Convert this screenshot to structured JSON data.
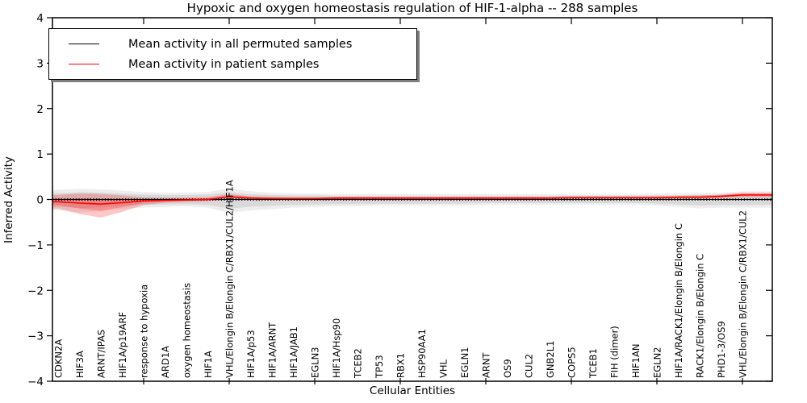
{
  "chart_data": {
    "type": "line",
    "title": "Hypoxic and oxygen homeostasis regulation of HIF-1-alpha -- 288 samples",
    "xlabel": "Cellular Entities",
    "ylabel": "Inferred Activity",
    "ylim": [
      -4,
      4
    ],
    "yticks": [
      4,
      3,
      2,
      1,
      0,
      -1,
      -2,
      -3,
      -4
    ],
    "grid": false,
    "legend_position": "upper left",
    "categories": [
      "CDKN2A",
      "HIF3A",
      "ARNT/IPAS",
      "HIF1A/p19ARF",
      "response to hypoxia",
      "ARD1A",
      "oxygen homeostasis",
      "HIF1A",
      "VHL/Elongin B/Elongin C/RBX1/CUL2/HIF1A",
      "HIF1A/p53",
      "HIF1A/ARNT",
      "HIF1A/JAB1",
      "EGLN3",
      "HIF1A/Hsp90",
      "TCEB2",
      "TP53",
      "RBX1",
      "HSP90AA1",
      "VHL",
      "EGLN1",
      "ARNT",
      "OS9",
      "CUL2",
      "GNB2L1",
      "COPS5",
      "TCEB1",
      "FIH (dimer)",
      "HIF1AN",
      "EGLN2",
      "HIF1A/RACK1/Elongin B/Elongin C",
      "RACK1/Elongin B/Elongin C",
      "PHD1-3/OS9",
      "VHL/Elongin B/Elongin C/RBX1/CUL2"
    ],
    "series": [
      {
        "name": "Mean activity in all permuted samples",
        "color": "#000000",
        "style": "solid-with-tick-markers",
        "values": [
          0,
          0,
          0,
          0,
          0,
          0,
          0,
          0,
          0,
          0,
          0,
          0,
          0,
          0,
          0,
          0,
          0,
          0,
          0,
          0,
          0,
          0,
          0,
          0,
          0,
          0,
          0,
          0,
          0,
          0,
          0,
          0,
          0
        ]
      },
      {
        "name": "Mean activity in patient samples",
        "color": "#ff0000",
        "style": "solid",
        "values": [
          -0.05,
          -0.08,
          -0.1,
          -0.07,
          -0.03,
          -0.02,
          -0.01,
          0.0,
          0.06,
          0.03,
          0.02,
          0.02,
          0.02,
          0.03,
          0.03,
          0.03,
          0.03,
          0.03,
          0.03,
          0.03,
          0.03,
          0.03,
          0.03,
          0.03,
          0.04,
          0.04,
          0.04,
          0.04,
          0.04,
          0.05,
          0.05,
          0.07,
          0.1
        ]
      }
    ],
    "bands": [
      {
        "name": "permuted samples activity spread",
        "color": "#c8c8c8",
        "opacity": 0.55,
        "upper": [
          0.14,
          0.16,
          0.15,
          0.13,
          0.11,
          0.1,
          0.1,
          0.11,
          0.16,
          0.12,
          0.1,
          0.09,
          0.09,
          0.08,
          0.08,
          0.08,
          0.08,
          0.08,
          0.08,
          0.08,
          0.08,
          0.08,
          0.08,
          0.08,
          0.08,
          0.08,
          0.08,
          0.08,
          0.09,
          0.09,
          0.1,
          0.1,
          0.12
        ],
        "lower": [
          -0.16,
          -0.19,
          -0.17,
          -0.14,
          -0.12,
          -0.11,
          -0.1,
          -0.12,
          -0.2,
          -0.16,
          -0.14,
          -0.12,
          -0.11,
          -0.1,
          -0.1,
          -0.09,
          -0.09,
          -0.09,
          -0.09,
          -0.09,
          -0.08,
          -0.08,
          -0.08,
          -0.08,
          -0.08,
          -0.08,
          -0.08,
          -0.08,
          -0.09,
          -0.11,
          -0.13,
          -0.12,
          -0.12
        ]
      },
      {
        "name": "patient samples activity spread",
        "color": "#ff0000",
        "opacity": 0.22,
        "upper": [
          0.1,
          0.13,
          0.12,
          0.09,
          0.05,
          0.04,
          0.04,
          0.05,
          0.12,
          0.07,
          0.06,
          0.05,
          0.05,
          0.06,
          0.06,
          0.06,
          0.06,
          0.06,
          0.06,
          0.06,
          0.06,
          0.06,
          0.06,
          0.06,
          0.07,
          0.07,
          0.07,
          0.07,
          0.07,
          0.08,
          0.09,
          0.11,
          0.15
        ],
        "lower": [
          -0.2,
          -0.32,
          -0.4,
          -0.27,
          -0.12,
          -0.07,
          -0.05,
          -0.04,
          0.01,
          -0.01,
          -0.01,
          -0.01,
          -0.01,
          0.0,
          0.0,
          0.0,
          0.0,
          0.0,
          0.0,
          0.0,
          0.0,
          0.0,
          0.0,
          0.0,
          0.01,
          0.01,
          0.01,
          0.01,
          0.01,
          0.02,
          0.02,
          0.03,
          0.05
        ]
      }
    ]
  }
}
